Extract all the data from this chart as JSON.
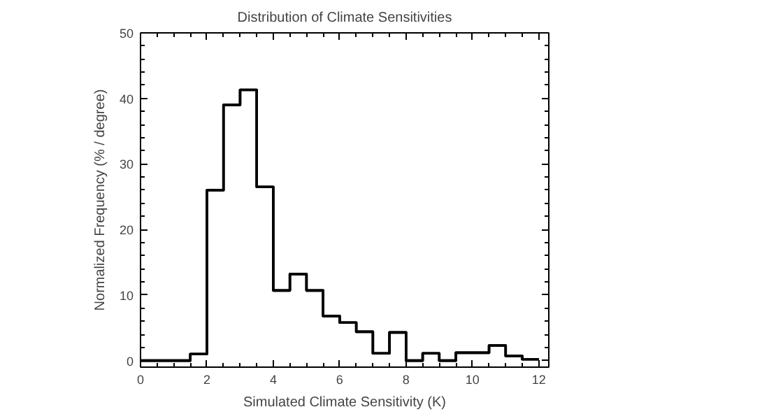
{
  "chart_data": {
    "type": "histogram",
    "title": "Distribution of Climate Sensitivities",
    "xlabel": "Simulated Climate Sensitivity (K)",
    "ylabel": "Normalized Frequency (% / degree)",
    "bins": [
      0,
      0.5,
      1,
      1.5,
      2,
      2.5,
      3,
      3.5,
      4,
      4.5,
      5,
      5.5,
      6,
      6.5,
      7,
      7.5,
      8,
      8.5,
      9,
      9.5,
      10,
      10.5,
      11,
      11.5,
      12
    ],
    "values": [
      0,
      0,
      0,
      1,
      26,
      39,
      41.3,
      26.5,
      10.7,
      13.2,
      10.7,
      6.8,
      5.8,
      4.4,
      1.1,
      4.3,
      0,
      1.1,
      0,
      1.2,
      1.2,
      2.3,
      0.7,
      0.2
    ],
    "color": "#000000",
    "xlim": [
      0,
      12.3
    ],
    "ylim": [
      -1,
      50
    ],
    "xticks": [
      0,
      2,
      4,
      6,
      8,
      10,
      12
    ],
    "yticks": [
      0,
      10,
      20,
      30,
      40,
      50
    ],
    "grid": false
  }
}
